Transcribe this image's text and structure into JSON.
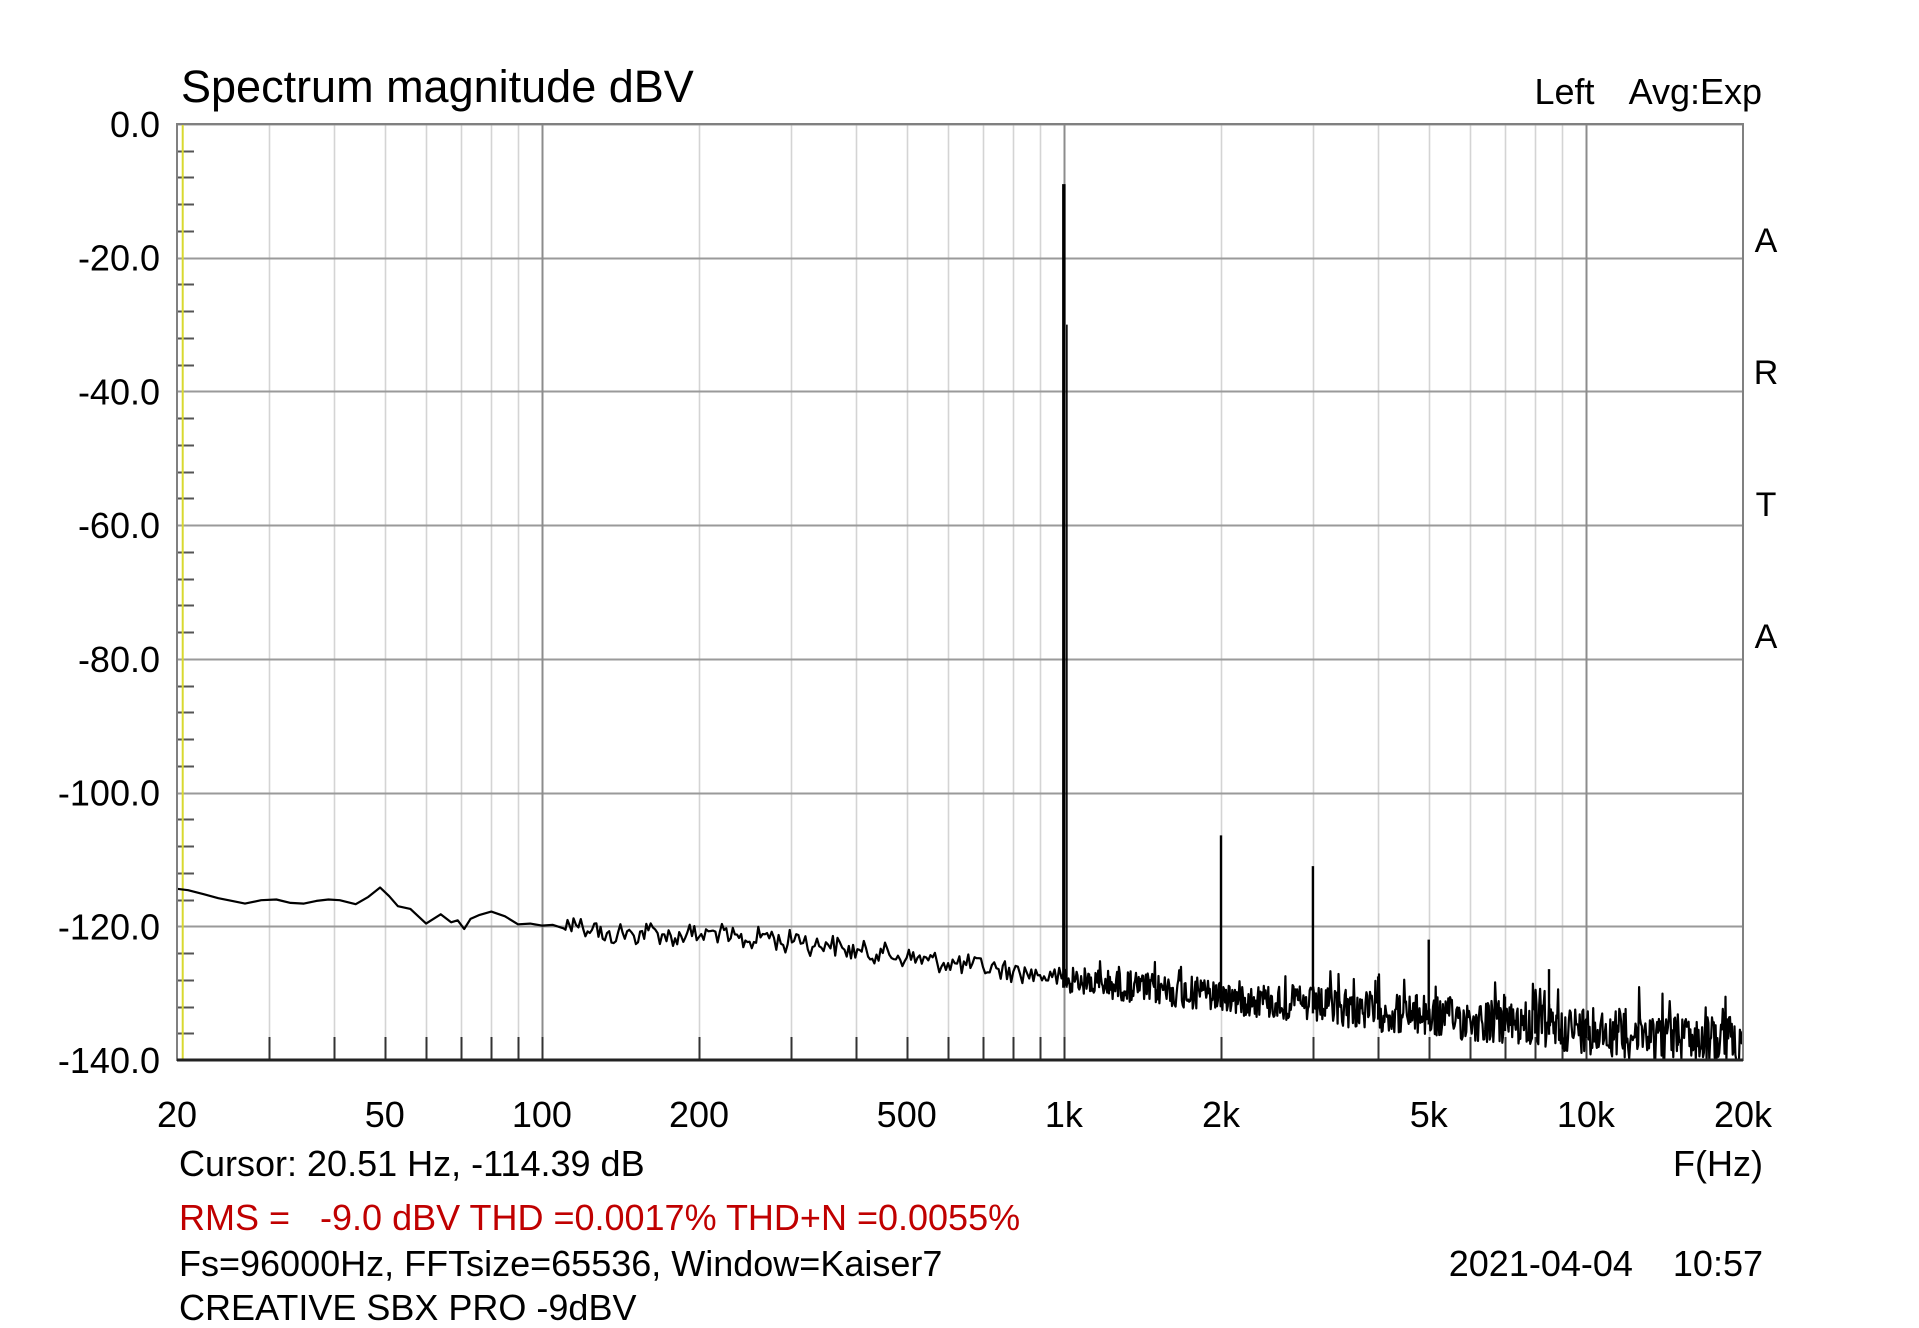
{
  "header": {
    "title": "Spectrum magnitude dBV",
    "channel_avg": "Left  Avg:Exp",
    "brand_letters": [
      "A",
      "R",
      "T",
      "A"
    ]
  },
  "footer": {
    "cursor": "Cursor: 20.51 Hz, -114.39 dB",
    "x_unit": "F(Hz)",
    "measurements": "RMS =   -9.0 dBV THD =0.0017% THD+N =0.0055%",
    "settings": "Fs=96000Hz, FFTsize=65536, Window=Kaiser7",
    "datetime": "2021-04-04  10:57",
    "device": "CREATIVE SBX PRO -9dBV"
  },
  "colors": {
    "trace": "#000000",
    "grid_minor": "#d4d4d4",
    "grid_major": "#8c8c8c",
    "grid_h": "#9a9a9a",
    "cursor_line": "#d8d830",
    "measurement_text": "#c00000"
  },
  "chart_data": {
    "type": "line",
    "title": "Spectrum magnitude dBV",
    "xlabel": "F(Hz)",
    "ylabel": "dBV",
    "xscale": "log",
    "xlim": [
      20,
      20000
    ],
    "ylim": [
      -140,
      0
    ],
    "grid": true,
    "x_ticks": [
      {
        "value": 20,
        "label": "20"
      },
      {
        "value": 50,
        "label": "50"
      },
      {
        "value": 100,
        "label": "100"
      },
      {
        "value": 200,
        "label": "200"
      },
      {
        "value": 500,
        "label": "500"
      },
      {
        "value": 1000,
        "label": "1k"
      },
      {
        "value": 2000,
        "label": "2k"
      },
      {
        "value": 5000,
        "label": "5k"
      },
      {
        "value": 10000,
        "label": "10k"
      },
      {
        "value": 20000,
        "label": "20k"
      }
    ],
    "y_ticks": [
      {
        "value": 0,
        "label": "0.0"
      },
      {
        "value": -20,
        "label": "-20.0"
      },
      {
        "value": -40,
        "label": "-40.0"
      },
      {
        "value": -60,
        "label": "-60.0"
      },
      {
        "value": -80,
        "label": "-80.0"
      },
      {
        "value": -100,
        "label": "-100.0"
      },
      {
        "value": -120,
        "label": "-120.0"
      },
      {
        "value": -140,
        "label": "-140.0"
      }
    ],
    "cursor_x": 20.51,
    "series": [
      {
        "name": "Left",
        "noise_floor": {
          "x": [
            20,
            21,
            22.5,
            24,
            25.5,
            27,
            29,
            31,
            33,
            35,
            37,
            39,
            41,
            44,
            46.5,
            49,
            51,
            53,
            56,
            60,
            64,
            67,
            69,
            71,
            73,
            76,
            80,
            85,
            90,
            95,
            100,
            105,
            110,
            115,
            120,
            126,
            132,
            140,
            150,
            160,
            170,
            180,
            190,
            200,
            215,
            230,
            250,
            270,
            290,
            310,
            330,
            350,
            380,
            410,
            450,
            500,
            550,
            600,
            650,
            700,
            750,
            800,
            850,
            900,
            950,
            990
          ],
          "y": [
            -114.4,
            -114.6,
            -115.2,
            -115.8,
            -116.2,
            -116.6,
            -116.1,
            -116.0,
            -116.5,
            -116.6,
            -116.2,
            -116.0,
            -116.1,
            -116.7,
            -115.6,
            -114.2,
            -115.5,
            -117.0,
            -117.4,
            -119.6,
            -118.2,
            -119.4,
            -119.1,
            -120.4,
            -118.9,
            -118.3,
            -117.8,
            -118.5,
            -119.7,
            -119.6,
            -119.9,
            -119.8,
            -120.3,
            -118.8,
            -120.4,
            -119.6,
            -122.1,
            -120.9,
            -121.4,
            -120.6,
            -121.2,
            -121.8,
            -120.9,
            -121.6,
            -120.8,
            -121.8,
            -122.3,
            -121.0,
            -122.8,
            -121.3,
            -123.1,
            -122.4,
            -123.5,
            -123.8,
            -124.0,
            -124.7,
            -125.1,
            -125.5,
            -125.8,
            -126.1,
            -126.4,
            -126.8,
            -127.0,
            -127.3,
            -127.6,
            -127.8
          ]
        },
        "noise_slope": {
          "x": [
            1000,
            2000,
            5000,
            10000,
            20000
          ],
          "y": [
            -128.0,
            -130.5,
            -133.5,
            -135.5,
            -137.5
          ]
        },
        "peaks": [
          {
            "x": 1000,
            "y": -9.0
          },
          {
            "x": 2000,
            "y": -106.4
          },
          {
            "x": 3000,
            "y": -111.0
          },
          {
            "x": 4000,
            "y": -127.5
          },
          {
            "x": 5000,
            "y": -122.0
          },
          {
            "x": 7000,
            "y": -130.5
          },
          {
            "x": 8000,
            "y": -132.0
          },
          {
            "x": 8500,
            "y": -126.4
          },
          {
            "x": 10000,
            "y": -134.0
          },
          {
            "x": 15000,
            "y": -136.0
          }
        ]
      }
    ]
  }
}
